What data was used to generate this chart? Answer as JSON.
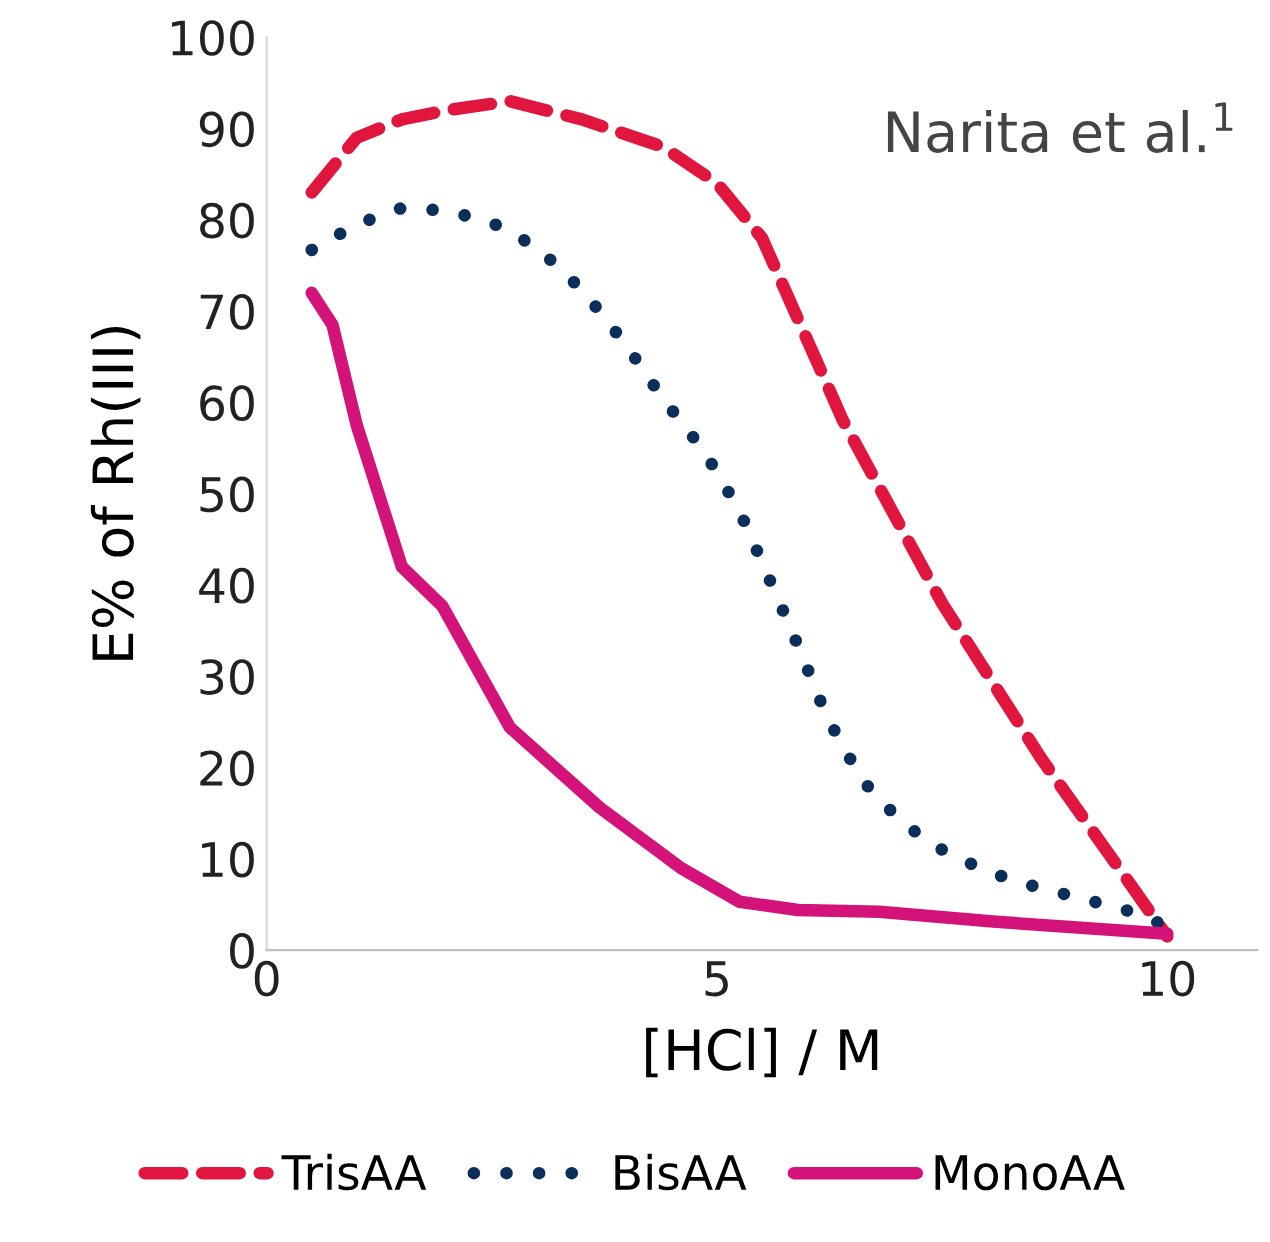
{
  "chart_data": {
    "type": "line",
    "xlabel": "[HCl] / M",
    "ylabel": "E% of Rh(III)",
    "xlim": [
      0,
      11
    ],
    "xticks": [
      0,
      5,
      10
    ],
    "ylim": [
      0,
      100
    ],
    "yticks": [
      0,
      10,
      20,
      30,
      40,
      50,
      60,
      70,
      80,
      90,
      100
    ],
    "grid": false,
    "legend": "bottom",
    "marker": "none",
    "annotations": [
      "Narita et al.$^{1}$"
    ],
    "series": [
      {
        "name": "TrisAA",
        "color": "#e0163f",
        "line_style": "dashed",
        "x": [
          0.5,
          1,
          1.5,
          2,
          2.7,
          3.5,
          4.4,
          5,
          5.5,
          6.4,
          7.5,
          8.6,
          10
        ],
        "values": [
          83,
          89,
          91,
          92,
          93,
          91,
          88,
          84,
          78,
          58,
          38,
          21,
          1.5
        ]
      },
      {
        "name": "BisAA",
        "color": "#0b2f5a",
        "line_style": "dotted",
        "x": [
          0.5,
          1,
          1.5,
          2,
          2.5,
          3,
          3.4,
          3.75,
          4.08,
          4.4,
          4.72,
          5.03,
          5.3,
          5.5,
          5.72,
          5.94,
          6.16,
          6.38,
          6.67,
          7.06,
          7.5,
          8,
          8.52,
          9.03,
          9.54,
          9.9,
          10
        ],
        "values": [
          76.7,
          79.5,
          81.3,
          81,
          79.7,
          77,
          73.3,
          69.4,
          65,
          60.4,
          56.4,
          52,
          47,
          42.5,
          37.5,
          32.4,
          27,
          22.5,
          18,
          13.9,
          11,
          8.6,
          7,
          5.7,
          4.4,
          3,
          1.5
        ]
      },
      {
        "name": "MonoAA",
        "color": "#d4137a",
        "line_style": "solid",
        "x": [
          0.5,
          0.73,
          1,
          1.5,
          1.95,
          2.7,
          3.7,
          4.6,
          5.25,
          5.9,
          6.8,
          8.1,
          10
        ],
        "values": [
          72,
          68.5,
          57.5,
          42,
          37.7,
          24.4,
          15.6,
          9,
          5.3,
          4.4,
          4.2,
          3.1,
          1.8
        ]
      }
    ]
  }
}
